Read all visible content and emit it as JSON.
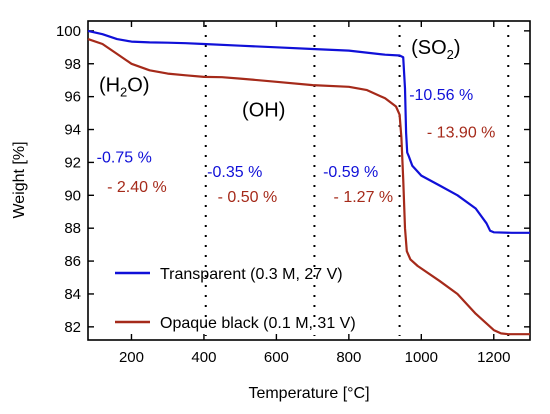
{
  "chart_data": {
    "type": "line",
    "xlabel": "Temperature [°C]",
    "ylabel": "Weight [%]",
    "xlim": [
      80,
      1300
    ],
    "ylim": [
      81.2,
      100.6
    ],
    "xticks": [
      200,
      400,
      600,
      800,
      1000,
      1200
    ],
    "yticks": [
      82,
      84,
      86,
      88,
      90,
      92,
      94,
      96,
      98,
      100
    ],
    "grid": false,
    "legend_position": "bottom-left",
    "colors": {
      "transparent": "#1010d8",
      "opaque": "#a52a1a"
    },
    "series": [
      {
        "name": "Transparent (0.3 M, 27 V)",
        "x": [
          80,
          120,
          160,
          200,
          250,
          300,
          350,
          400,
          500,
          600,
          700,
          800,
          900,
          940,
          950,
          955,
          958,
          961,
          965,
          975,
          1000,
          1050,
          1100,
          1150,
          1180,
          1190,
          1200,
          1250,
          1300
        ],
        "y": [
          100.0,
          99.8,
          99.5,
          99.35,
          99.3,
          99.28,
          99.25,
          99.2,
          99.1,
          99.0,
          98.9,
          98.8,
          98.55,
          98.5,
          98.4,
          96.5,
          93.8,
          92.6,
          92.4,
          91.8,
          91.2,
          90.6,
          90.0,
          89.2,
          88.3,
          87.85,
          87.75,
          87.72,
          87.72
        ]
      },
      {
        "name": "Opaque black (0.1 M, 31 V)",
        "x": [
          80,
          120,
          160,
          200,
          250,
          300,
          350,
          400,
          450,
          500,
          600,
          700,
          800,
          850,
          900,
          930,
          940,
          945,
          950,
          955,
          960,
          970,
          990,
          1050,
          1100,
          1150,
          1200,
          1220,
          1240,
          1300
        ],
        "y": [
          99.5,
          99.2,
          98.6,
          98.0,
          97.6,
          97.4,
          97.3,
          97.2,
          97.18,
          97.1,
          96.9,
          96.7,
          96.6,
          96.4,
          95.9,
          95.4,
          94.9,
          93.5,
          91.0,
          88.0,
          86.6,
          86.1,
          85.7,
          84.8,
          84.0,
          82.8,
          81.8,
          81.6,
          81.55,
          81.55
        ]
      }
    ],
    "dividers_x": [
      405,
      705,
      940,
      1240
    ],
    "region_labels": [
      {
        "base": "(H",
        "sub": "2",
        "tail": "O)",
        "x": 180,
        "y": 96.3
      },
      {
        "base": "(OH)",
        "sub": "",
        "tail": "",
        "x": 565,
        "y": 94.8
      },
      {
        "base": "(SO",
        "sub": "2",
        "tail": ")",
        "x": 1040,
        "y": 98.6
      }
    ],
    "annotations": [
      {
        "text": "-0.75 %",
        "series": "transparent",
        "x": 180,
        "y": 92.0
      },
      {
        "text": "- 2.40 %",
        "series": "opaque",
        "x": 215,
        "y": 90.2
      },
      {
        "text": "-0.35 %",
        "series": "transparent",
        "x": 485,
        "y": 91.1
      },
      {
        "text": "- 0.50 %",
        "series": "opaque",
        "x": 520,
        "y": 89.6
      },
      {
        "text": "-0.59 %",
        "series": "transparent",
        "x": 805,
        "y": 91.1
      },
      {
        "text": "- 1.27 %",
        "series": "opaque",
        "x": 840,
        "y": 89.6
      },
      {
        "text": "-10.56 %",
        "series": "transparent",
        "x": 1055,
        "y": 95.8
      },
      {
        "text": "- 13.90 %",
        "series": "opaque",
        "x": 1110,
        "y": 93.5
      }
    ]
  }
}
